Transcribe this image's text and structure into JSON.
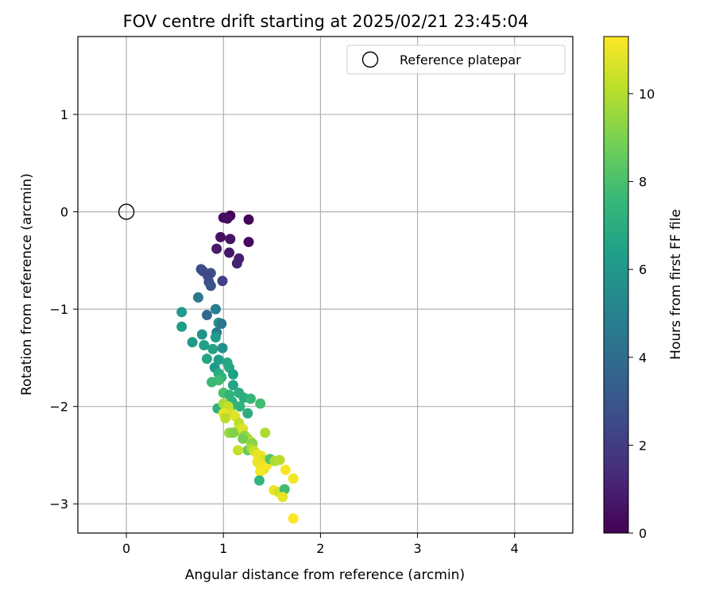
{
  "chart_data": {
    "type": "scatter",
    "title": "FOV centre drift starting at 2025/02/21 23:45:04",
    "xlabel": "Angular distance from reference (arcmin)",
    "ylabel": "Rotation from reference (arcmin)",
    "xlim": [
      -0.5,
      4.6
    ],
    "ylim": [
      -3.3,
      1.8
    ],
    "xticks": [
      0,
      1,
      2,
      3,
      4
    ],
    "yticks": [
      1,
      0,
      -1,
      -2,
      -3
    ],
    "grid": true,
    "legend": {
      "placement": "upper right",
      "entries": [
        "Reference platepar"
      ]
    },
    "reference_point": {
      "x": 0,
      "y": 0,
      "marker": "open-circle"
    },
    "colorbar": {
      "label": "Hours from first FF file",
      "colormap": "viridis",
      "range": [
        0,
        11.3
      ],
      "ticks": [
        0,
        2,
        4,
        6,
        8,
        10
      ],
      "colors": [
        "#440154",
        "#482878",
        "#3e4a89",
        "#31688e",
        "#26828e",
        "#1f9e89",
        "#35b779",
        "#6ece58",
        "#b5de2b",
        "#fde725"
      ]
    },
    "series": [
      {
        "points": [
          [
            1.07,
            -0.04,
            0.1
          ],
          [
            1.0,
            -0.06,
            0.3
          ],
          [
            1.04,
            -0.07,
            0.4
          ],
          [
            1.26,
            -0.08,
            0.2
          ],
          [
            0.97,
            -0.26,
            0.5
          ],
          [
            1.07,
            -0.28,
            0.6
          ],
          [
            1.26,
            -0.31,
            0.3
          ],
          [
            0.93,
            -0.38,
            0.8
          ],
          [
            1.06,
            -0.42,
            0.7
          ],
          [
            1.16,
            -0.48,
            0.9
          ],
          [
            1.14,
            -0.53,
            1.0
          ],
          [
            0.77,
            -0.59,
            2.6
          ],
          [
            0.79,
            -0.61,
            2.5
          ],
          [
            0.87,
            -0.63,
            2.8
          ],
          [
            0.84,
            -0.66,
            2.4
          ],
          [
            0.85,
            -0.72,
            2.7
          ],
          [
            0.99,
            -0.71,
            2.2
          ],
          [
            0.87,
            -0.76,
            2.9
          ],
          [
            0.74,
            -0.88,
            4.6
          ],
          [
            0.83,
            -1.06,
            3.8
          ],
          [
            0.92,
            -1.0,
            4.8
          ],
          [
            0.57,
            -1.03,
            6.1
          ],
          [
            0.57,
            -1.18,
            6.3
          ],
          [
            0.95,
            -1.14,
            5.9
          ],
          [
            0.98,
            -1.15,
            4.5
          ],
          [
            0.78,
            -1.26,
            5.8
          ],
          [
            0.93,
            -1.24,
            4.7
          ],
          [
            0.68,
            -1.34,
            6.0
          ],
          [
            0.92,
            -1.29,
            6.2
          ],
          [
            0.8,
            -1.37,
            6.4
          ],
          [
            0.89,
            -1.41,
            6.5
          ],
          [
            0.99,
            -1.4,
            5.7
          ],
          [
            0.83,
            -1.51,
            6.6
          ],
          [
            0.95,
            -1.52,
            6.3
          ],
          [
            1.04,
            -1.55,
            6.7
          ],
          [
            0.91,
            -1.6,
            6.1
          ],
          [
            1.06,
            -1.6,
            6.8
          ],
          [
            0.95,
            -1.66,
            6.9
          ],
          [
            1.1,
            -1.67,
            6.4
          ],
          [
            0.98,
            -1.7,
            7.2
          ],
          [
            0.88,
            -1.75,
            7.6
          ],
          [
            1.1,
            -1.78,
            6.6
          ],
          [
            0.95,
            -1.73,
            7.7
          ],
          [
            1.0,
            -1.86,
            7.9
          ],
          [
            1.06,
            -1.88,
            7.4
          ],
          [
            1.16,
            -1.86,
            7.1
          ],
          [
            1.09,
            -1.95,
            7.3
          ],
          [
            1.21,
            -1.91,
            7.0
          ],
          [
            1.28,
            -1.92,
            7.5
          ],
          [
            1.38,
            -1.97,
            7.8
          ],
          [
            0.94,
            -2.02,
            7.2
          ],
          [
            1.07,
            -2.02,
            7.6
          ],
          [
            1.17,
            -2.0,
            7.3
          ],
          [
            1.25,
            -2.07,
            7.0
          ],
          [
            1.0,
            -1.97,
            9.8
          ],
          [
            1.05,
            -2.0,
            10.3
          ],
          [
            1.08,
            -2.07,
            10.6
          ],
          [
            1.0,
            -2.07,
            10.9
          ],
          [
            1.02,
            -2.12,
            10.1
          ],
          [
            1.12,
            -2.1,
            10.8
          ],
          [
            1.06,
            -2.27,
            9.6
          ],
          [
            1.16,
            -2.17,
            10.2
          ],
          [
            1.14,
            -2.25,
            10.5
          ],
          [
            1.18,
            -2.26,
            9.9
          ],
          [
            1.2,
            -2.23,
            10.7
          ],
          [
            1.22,
            -2.3,
            9.4
          ],
          [
            1.25,
            -2.33,
            9.7
          ],
          [
            1.28,
            -2.36,
            10.0
          ],
          [
            1.3,
            -2.38,
            9.2
          ],
          [
            1.2,
            -2.33,
            8.9
          ],
          [
            1.25,
            -2.45,
            8.6
          ],
          [
            1.29,
            -2.43,
            9.8
          ],
          [
            1.32,
            -2.46,
            10.4
          ],
          [
            1.35,
            -2.49,
            10.9
          ],
          [
            1.39,
            -2.51,
            11.0
          ],
          [
            1.41,
            -2.55,
            10.6
          ],
          [
            1.38,
            -2.61,
            11.1
          ],
          [
            1.42,
            -2.64,
            10.8
          ],
          [
            1.45,
            -2.6,
            11.2
          ],
          [
            1.48,
            -2.54,
            8.2
          ],
          [
            1.35,
            -2.57,
            11.0
          ],
          [
            1.38,
            -2.67,
            11.2
          ],
          [
            1.1,
            -2.27,
            9.1
          ],
          [
            1.15,
            -2.45,
            10.3
          ],
          [
            1.43,
            -2.27,
            9.9
          ],
          [
            1.37,
            -2.76,
            7.4
          ],
          [
            1.53,
            -2.56,
            9.9
          ],
          [
            1.58,
            -2.55,
            10.1
          ],
          [
            1.64,
            -2.65,
            11.2
          ],
          [
            1.72,
            -2.74,
            11.1
          ],
          [
            1.52,
            -2.86,
            11.0
          ],
          [
            1.57,
            -2.88,
            10.5
          ],
          [
            1.63,
            -2.85,
            7.8
          ],
          [
            1.61,
            -2.93,
            10.9
          ],
          [
            1.72,
            -3.15,
            11.3
          ]
        ]
      }
    ]
  }
}
